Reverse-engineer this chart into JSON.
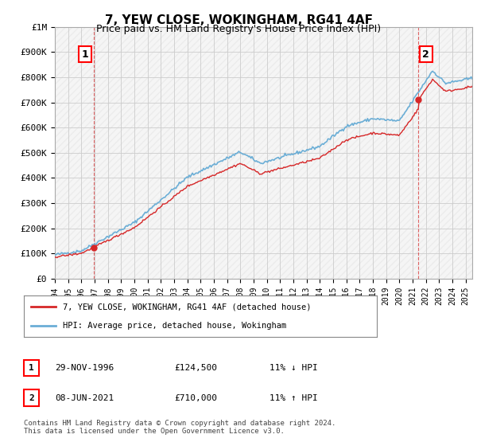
{
  "title": "7, YEW CLOSE, WOKINGHAM, RG41 4AF",
  "subtitle": "Price paid vs. HM Land Registry's House Price Index (HPI)",
  "ylabel_ticks": [
    "£0",
    "£100K",
    "£200K",
    "£300K",
    "£400K",
    "£500K",
    "£600K",
    "£700K",
    "£800K",
    "£900K",
    "£1M"
  ],
  "ytick_values": [
    0,
    100000,
    200000,
    300000,
    400000,
    500000,
    600000,
    700000,
    800000,
    900000,
    1000000
  ],
  "ylim": [
    0,
    1000000
  ],
  "xlim_start": 1994.0,
  "xlim_end": 2025.5,
  "sale1_year": 1996.92,
  "sale1_price": 124500,
  "sale2_year": 2021.44,
  "sale2_price": 710000,
  "hpi_color": "#6baed6",
  "sale_color": "#d62728",
  "plot_bg_color": "#ffffff",
  "grid_color": "#cccccc",
  "legend_label1": "7, YEW CLOSE, WOKINGHAM, RG41 4AF (detached house)",
  "legend_label2": "HPI: Average price, detached house, Wokingham",
  "annotation1_label": "1",
  "annotation2_label": "2",
  "table_row1": [
    "1",
    "29-NOV-1996",
    "£124,500",
    "11% ↓ HPI"
  ],
  "table_row2": [
    "2",
    "08-JUN-2021",
    "£710,000",
    "11% ↑ HPI"
  ],
  "footer": "Contains HM Land Registry data © Crown copyright and database right 2024.\nThis data is licensed under the Open Government Licence v3.0.",
  "xtick_years": [
    1994,
    1995,
    1996,
    1997,
    1998,
    1999,
    2000,
    2001,
    2002,
    2003,
    2004,
    2005,
    2006,
    2007,
    2008,
    2009,
    2010,
    2011,
    2012,
    2013,
    2014,
    2015,
    2016,
    2017,
    2018,
    2019,
    2020,
    2021,
    2022,
    2023,
    2024,
    2025
  ]
}
